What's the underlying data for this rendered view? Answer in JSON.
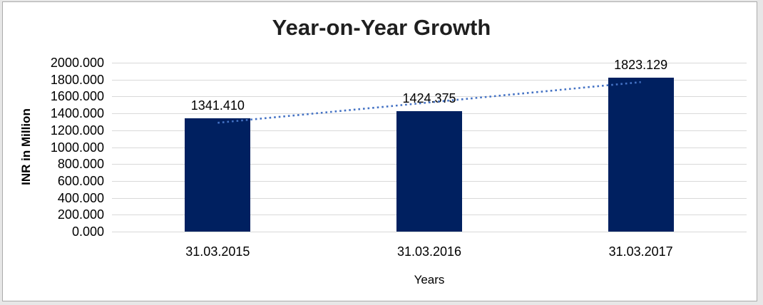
{
  "frame": {
    "outer_background": "#e7e7e7",
    "surface_background": "#ffffff",
    "border_color": "#ababab"
  },
  "chart_data": {
    "type": "bar",
    "title": "Year-on-Year Growth",
    "xlabel": "Years",
    "ylabel": "INR in Million",
    "categories": [
      "31.03.2015",
      "31.03.2016",
      "31.03.2017"
    ],
    "values": [
      1341.41,
      1424.375,
      1823.129
    ],
    "data_labels": [
      "1341.410",
      "1424.375",
      "1823.129"
    ],
    "ylim": [
      0,
      2000
    ],
    "y_tick_step": 200,
    "y_tick_labels": [
      "0.000",
      "200.000",
      "400.000",
      "600.000",
      "800.000",
      "1000.000",
      "1200.000",
      "1400.000",
      "1600.000",
      "1800.000",
      "2000.000"
    ],
    "grid": true,
    "legend_position": "none",
    "bar_color": "#002060",
    "gridline_color": "#d9d9d9",
    "text_color": "#000000",
    "title_color": "#1f1f1f",
    "trendline": {
      "type": "linear",
      "style": "dotted",
      "color": "#4472c4"
    }
  }
}
